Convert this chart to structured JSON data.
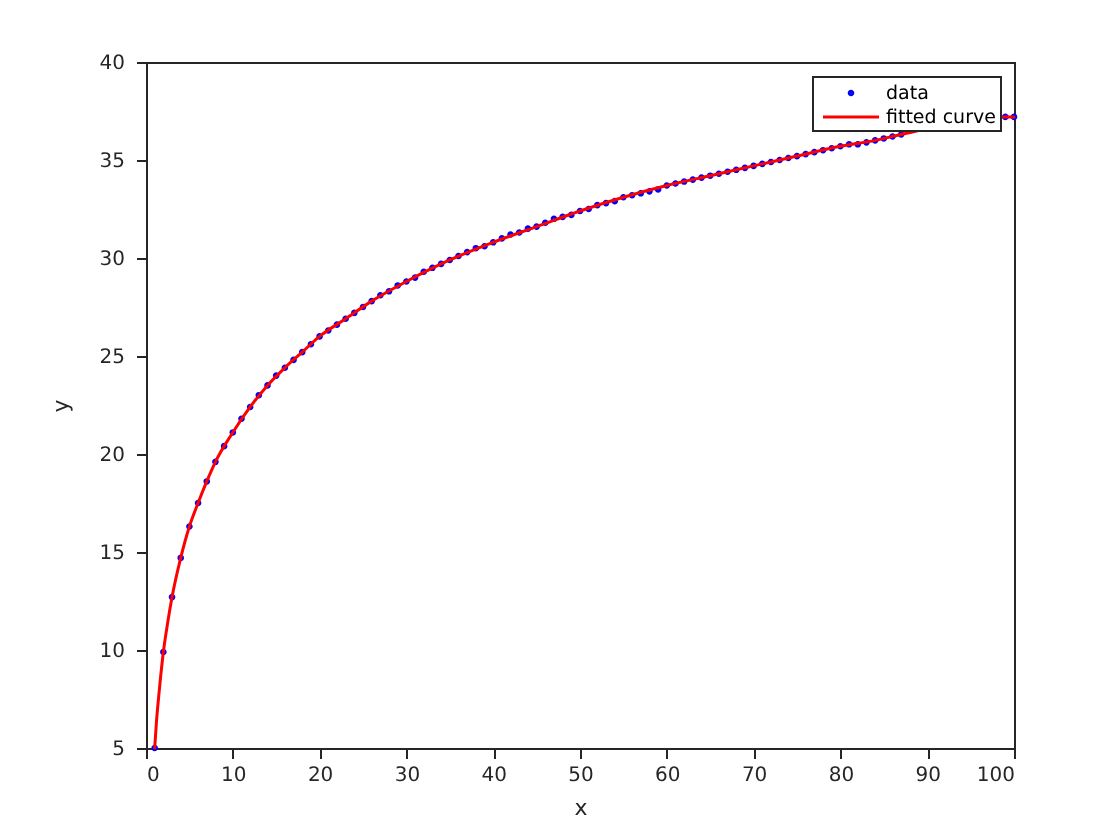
{
  "chart_data": {
    "type": "scatter",
    "xlabel": "x",
    "ylabel": "y",
    "xlim": [
      0,
      100
    ],
    "ylim": [
      5,
      40
    ],
    "xticks": [
      0,
      10,
      20,
      30,
      40,
      50,
      60,
      70,
      80,
      90,
      100
    ],
    "yticks": [
      5,
      10,
      15,
      20,
      25,
      30,
      35,
      40
    ],
    "grid": false,
    "legend": "top right",
    "series": [
      {
        "name": "data",
        "color": "#0000ff",
        "marker": "circle",
        "x": [
          1,
          2,
          3,
          4,
          5,
          6,
          7,
          8,
          9,
          10,
          11,
          12,
          13,
          14,
          15,
          16,
          17,
          18,
          19,
          20,
          21,
          22,
          23,
          24,
          25,
          26,
          27,
          28,
          29,
          30,
          31,
          32,
          33,
          34,
          35,
          36,
          37,
          38,
          39,
          40,
          41,
          42,
          43,
          44,
          45,
          46,
          47,
          48,
          49,
          50,
          51,
          52,
          53,
          54,
          55,
          56,
          57,
          58,
          59,
          60,
          61,
          62,
          63,
          64,
          65,
          66,
          67,
          68,
          69,
          70,
          71,
          72,
          73,
          74,
          75,
          76,
          77,
          78,
          79,
          80,
          81,
          82,
          83,
          84,
          85,
          86,
          87,
          88,
          89,
          90,
          91,
          92,
          93,
          94,
          95,
          96,
          97,
          98,
          99,
          100
        ],
        "values": [
          5.0,
          9.9,
          12.7,
          14.7,
          16.3,
          17.5,
          18.6,
          19.6,
          20.4,
          21.1,
          21.8,
          22.4,
          23.0,
          23.5,
          24.0,
          24.4,
          24.8,
          25.2,
          25.6,
          26.0,
          26.3,
          26.6,
          26.9,
          27.2,
          27.5,
          27.8,
          28.1,
          28.3,
          28.6,
          28.8,
          29.0,
          29.3,
          29.5,
          29.7,
          29.9,
          30.1,
          30.3,
          30.5,
          30.6,
          30.8,
          31.0,
          31.2,
          31.3,
          31.5,
          31.6,
          31.8,
          32.0,
          32.1,
          32.2,
          32.4,
          32.5,
          32.7,
          32.8,
          32.9,
          33.1,
          33.2,
          33.3,
          33.4,
          33.5,
          33.7,
          33.8,
          33.9,
          34.0,
          34.1,
          34.2,
          34.3,
          34.4,
          34.5,
          34.6,
          34.7,
          34.8,
          34.9,
          35.0,
          35.1,
          35.2,
          35.3,
          35.4,
          35.5,
          35.6,
          35.7,
          35.8,
          35.8,
          35.9,
          36.0,
          36.1,
          36.2,
          36.3,
          null,
          null,
          null,
          null,
          null,
          null,
          null,
          null,
          null,
          null,
          null,
          37.2,
          37.2
        ]
      },
      {
        "name": "fitted curve",
        "type": "line",
        "color": "#ff0000",
        "marker": "none",
        "line_style": "solid",
        "x": [
          1,
          1.2,
          1.5,
          2,
          2.5,
          3,
          4,
          5,
          6,
          7,
          8,
          10,
          12,
          14,
          16,
          18,
          20,
          23,
          26,
          30,
          35,
          40,
          45,
          50,
          55,
          60,
          65,
          70,
          75,
          80,
          84,
          87,
          99,
          100
        ],
        "values": [
          5.0,
          6.3,
          7.8,
          9.9,
          11.4,
          12.7,
          14.7,
          16.3,
          17.5,
          18.6,
          19.6,
          21.1,
          22.4,
          23.5,
          24.4,
          25.2,
          26.0,
          26.9,
          27.8,
          28.8,
          29.9,
          30.8,
          31.6,
          32.4,
          33.1,
          33.7,
          34.2,
          34.7,
          35.2,
          35.7,
          36.0,
          36.3,
          37.2,
          37.2
        ]
      }
    ]
  }
}
